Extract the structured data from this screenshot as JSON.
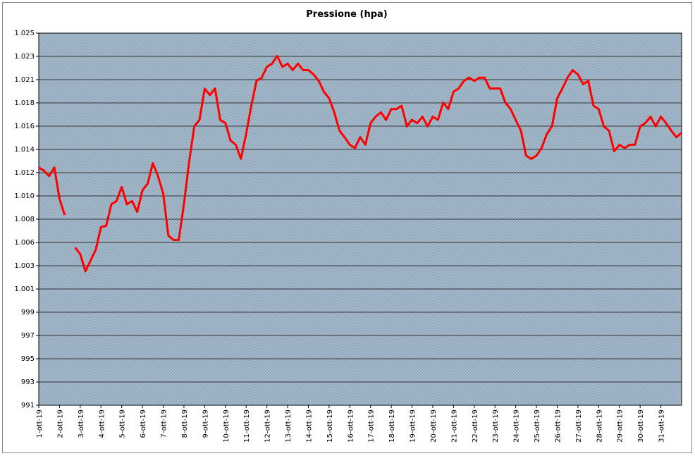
{
  "chart_data": {
    "type": "line",
    "title": "Pressione (hpa)",
    "xlim": [
      0,
      31
    ],
    "xticks": [
      {
        "value": 0,
        "label": "1-ott-19"
      },
      {
        "value": 1,
        "label": "2-ott-19"
      },
      {
        "value": 2,
        "label": "3-ott-19"
      },
      {
        "value": 3,
        "label": "4-ott-19"
      },
      {
        "value": 4,
        "label": "5-ott-19"
      },
      {
        "value": 5,
        "label": "6-ott-19"
      },
      {
        "value": 6,
        "label": "7-ott-19"
      },
      {
        "value": 7,
        "label": "8-ott-19"
      },
      {
        "value": 8,
        "label": "9-ott-19"
      },
      {
        "value": 9,
        "label": "10-ott-19"
      },
      {
        "value": 10,
        "label": "11-ott-19"
      },
      {
        "value": 11,
        "label": "12-ott-19"
      },
      {
        "value": 12,
        "label": "13-ott-19"
      },
      {
        "value": 13,
        "label": "14-ott-19"
      },
      {
        "value": 14,
        "label": "15-ott-19"
      },
      {
        "value": 15,
        "label": "16-ott-19"
      },
      {
        "value": 16,
        "label": "17-ott-19"
      },
      {
        "value": 17,
        "label": "18-ott-19"
      },
      {
        "value": 18,
        "label": "19-ott-19"
      },
      {
        "value": 19,
        "label": "20-ott-19"
      },
      {
        "value": 20,
        "label": "21-ott-19"
      },
      {
        "value": 21,
        "label": "22-ott-19"
      },
      {
        "value": 22,
        "label": "23-ott-19"
      },
      {
        "value": 23,
        "label": "24-ott-19"
      },
      {
        "value": 24,
        "label": "25-ott-19"
      },
      {
        "value": 25,
        "label": "26-ott-19"
      },
      {
        "value": 26,
        "label": "27-ott-19"
      },
      {
        "value": 27,
        "label": "28-ott-19"
      },
      {
        "value": 28,
        "label": "29-ott-19"
      },
      {
        "value": 29,
        "label": "30-ott-19"
      },
      {
        "value": 30,
        "label": "31-ott-19"
      }
    ],
    "ylim": [
      990.52,
      1024.92
    ],
    "yticks": [
      {
        "value": 990.52,
        "label": "991"
      },
      {
        "value": 992.67,
        "label": "993"
      },
      {
        "value": 994.82,
        "label": "995"
      },
      {
        "value": 996.97,
        "label": "997"
      },
      {
        "value": 999.12,
        "label": "999"
      },
      {
        "value": 1001.27,
        "label": "1.001"
      },
      {
        "value": 1003.42,
        "label": "1.003"
      },
      {
        "value": 1005.57,
        "label": "1.006"
      },
      {
        "value": 1007.72,
        "label": "1.008"
      },
      {
        "value": 1009.87,
        "label": "1.010"
      },
      {
        "value": 1012.02,
        "label": "1.012"
      },
      {
        "value": 1014.17,
        "label": "1.014"
      },
      {
        "value": 1016.32,
        "label": "1.016"
      },
      {
        "value": 1018.47,
        "label": "1.018"
      },
      {
        "value": 1020.62,
        "label": "1.021"
      },
      {
        "value": 1022.77,
        "label": "1.023"
      },
      {
        "value": 1024.92,
        "label": "1.025"
      }
    ],
    "grid": true,
    "x": [
      0,
      0.25,
      0.5,
      0.75,
      1,
      1.25,
      1.5,
      1.75,
      2,
      2.25,
      2.5,
      2.75,
      3,
      3.25,
      3.5,
      3.75,
      4,
      4.25,
      4.5,
      4.75,
      5,
      5.25,
      5.5,
      5.75,
      6,
      6.25,
      6.5,
      6.75,
      7,
      7.25,
      7.5,
      7.75,
      8,
      8.25,
      8.5,
      8.75,
      9,
      9.25,
      9.5,
      9.75,
      10,
      10.25,
      10.5,
      10.75,
      11,
      11.25,
      11.5,
      11.75,
      12,
      12.25,
      12.5,
      12.75,
      13,
      13.25,
      13.5,
      13.75,
      14,
      14.25,
      14.5,
      14.75,
      15,
      15.25,
      15.5,
      15.75,
      16,
      16.25,
      16.5,
      16.75,
      17,
      17.25,
      17.5,
      17.75,
      18,
      18.25,
      18.5,
      18.75,
      19,
      19.25,
      19.5,
      19.75,
      20,
      20.25,
      20.5,
      20.75,
      21,
      21.25,
      21.5,
      21.75,
      22,
      22.25,
      22.5,
      22.75,
      23,
      23.25,
      23.5,
      23.75,
      24,
      24.25,
      24.5,
      24.75,
      25,
      25.25,
      25.5,
      25.75,
      26,
      26.25,
      26.5,
      26.75,
      27,
      27.25,
      27.5,
      27.75,
      28,
      28.25,
      28.5,
      28.75,
      29,
      29.25,
      29.5,
      29.75,
      30,
      30.25,
      30.5,
      30.75,
      31
    ],
    "series": [
      {
        "color": "#ff0000",
        "values": [
          1012.5,
          1012.2,
          1011.7,
          1012.5,
          1009.6,
          1008.1,
          null,
          1005.1,
          1004.5,
          1002.9,
          1003.9,
          1004.9,
          1007.0,
          1007.1,
          1009.1,
          1009.4,
          1010.7,
          1009.1,
          1009.4,
          1008.4,
          1010.4,
          1011.0,
          1012.9,
          1011.7,
          1010.1,
          1006.2,
          1005.8,
          1005.8,
          1009.1,
          1013.0,
          1016.3,
          1016.9,
          1019.8,
          1019.2,
          1019.8,
          1016.9,
          1016.6,
          1015.0,
          1014.6,
          1013.3,
          1015.6,
          1018.2,
          1020.5,
          1020.8,
          1021.8,
          1022.1,
          1022.8,
          1021.8,
          1022.1,
          1021.5,
          1022.1,
          1021.5,
          1021.5,
          1021.1,
          1020.5,
          1019.5,
          1018.9,
          1017.6,
          1015.9,
          1015.3,
          1014.6,
          1014.3,
          1015.3,
          1014.6,
          1016.6,
          1017.2,
          1017.6,
          1016.9,
          1017.9,
          1017.9,
          1018.2,
          1016.3,
          1016.9,
          1016.6,
          1017.2,
          1016.3,
          1017.2,
          1016.9,
          1018.5,
          1017.9,
          1019.5,
          1019.8,
          1020.5,
          1020.8,
          1020.5,
          1020.8,
          1020.8,
          1019.8,
          1019.8,
          1019.8,
          1018.5,
          1017.9,
          1016.9,
          1015.9,
          1013.6,
          1013.3,
          1013.6,
          1014.3,
          1015.6,
          1016.3,
          1018.9,
          1019.8,
          1020.8,
          1021.5,
          1021.1,
          1020.2,
          1020.5,
          1018.2,
          1017.9,
          1016.3,
          1015.9,
          1014.0,
          1014.6,
          1014.3,
          1014.6,
          1014.6,
          1016.3,
          1016.6,
          1017.2,
          1016.3,
          1017.2,
          1016.6,
          1015.9,
          1015.3,
          1015.7
        ]
      }
    ]
  }
}
